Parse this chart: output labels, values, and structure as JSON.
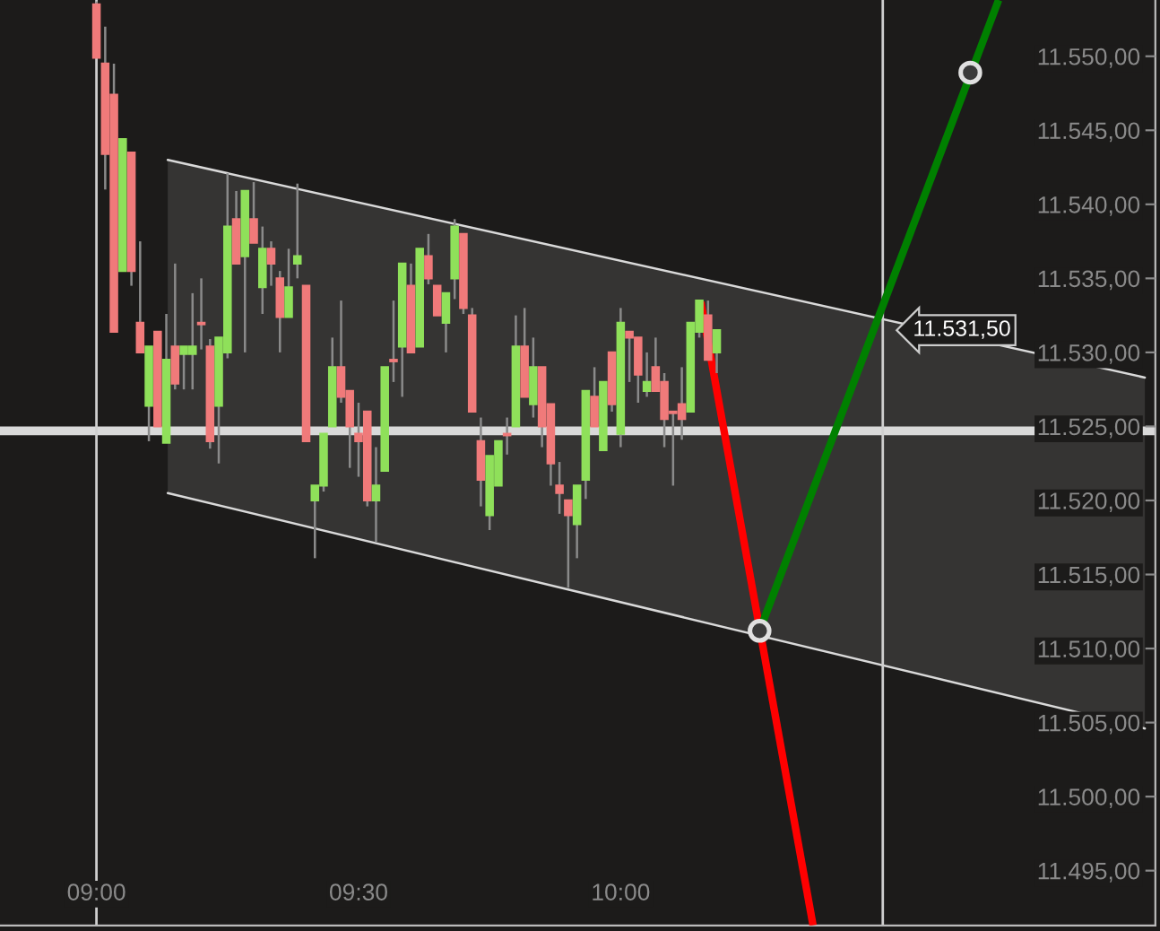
{
  "chart_data": {
    "type": "candlestick",
    "x": [
      9.0,
      9.0167,
      9.0333,
      9.05,
      9.0667,
      9.0833,
      9.1,
      9.1167,
      9.1333,
      9.15,
      9.1667,
      9.1833,
      9.2,
      9.2167,
      9.2333,
      9.25,
      9.2667,
      9.2833,
      9.3,
      9.3167,
      9.3333,
      9.35,
      9.3667,
      9.3833,
      9.4,
      9.4167,
      9.4333,
      9.45,
      9.4667,
      9.4833,
      9.5,
      9.5167,
      9.5333,
      9.55,
      9.5667,
      9.5833,
      9.6,
      9.6167,
      9.6333,
      9.65,
      9.6667,
      9.6833,
      9.7,
      9.7167,
      9.7333,
      9.75,
      9.7667,
      9.7833,
      9.8,
      9.8167,
      9.8333,
      9.85,
      9.8667,
      9.8833,
      9.9,
      9.9167,
      9.9333,
      9.95,
      9.9667,
      9.9833,
      10.0,
      10.0167,
      10.0333,
      10.05,
      10.0667,
      10.0833,
      10.1,
      10.1167,
      10.1333,
      10.15,
      10.1667,
      10.1833
    ],
    "ohlc": [
      [
        11553.5,
        11553.7,
        11549.9,
        11549.9
      ],
      [
        11549.5,
        11552.0,
        11541.0,
        11543.4
      ],
      [
        11547.4,
        11549.5,
        11531.4,
        11531.4
      ],
      [
        11535.5,
        11544.4,
        11535.5,
        11544.4
      ],
      [
        11543.5,
        11543.5,
        11534.5,
        11535.5
      ],
      [
        11532.0,
        11537.5,
        11530.0,
        11530.0
      ],
      [
        11526.4,
        11530.4,
        11524.0,
        11530.4
      ],
      [
        11531.4,
        11531.4,
        11525.0,
        11525.0
      ],
      [
        11523.9,
        11532.6,
        11523.9,
        11529.5
      ],
      [
        11530.4,
        11536.0,
        11527.5,
        11527.9
      ],
      [
        11529.9,
        11530.4,
        11527.5,
        11530.4
      ],
      [
        11529.9,
        11534.0,
        11527.5,
        11530.4
      ],
      [
        11532.0,
        11535.0,
        11530.2,
        11531.9
      ],
      [
        11530.4,
        11530.9,
        11523.5,
        11524.0
      ],
      [
        11526.4,
        11531.0,
        11522.5,
        11531.0
      ],
      [
        11530.0,
        11542.1,
        11529.6,
        11538.5
      ],
      [
        11539.0,
        11540.9,
        11536.0,
        11536.0
      ],
      [
        11536.5,
        11540.9,
        11530.0,
        11540.9
      ],
      [
        11539.0,
        11541.5,
        11537.4,
        11537.4
      ],
      [
        11534.4,
        11538.5,
        11532.6,
        11537.0
      ],
      [
        11537.0,
        11537.5,
        11534.5,
        11536.0
      ],
      [
        11535.0,
        11535.5,
        11530.0,
        11532.4
      ],
      [
        11532.4,
        11537.0,
        11532.4,
        11534.4
      ],
      [
        11536.0,
        11541.4,
        11535.0,
        11536.5
      ],
      [
        11534.5,
        11534.5,
        11524.0,
        11524.0
      ],
      [
        11520.0,
        11521.0,
        11516.1,
        11521.0
      ],
      [
        11521.0,
        11524.5,
        11520.6,
        11524.5
      ],
      [
        11525.0,
        11531.0,
        11525.0,
        11529.0
      ],
      [
        11529.0,
        11533.5,
        11526.6,
        11527.0
      ],
      [
        11527.4,
        11527.4,
        11522.2,
        11525.0
      ],
      [
        11524.5,
        11526.6,
        11521.6,
        11524.0
      ],
      [
        11526.0,
        11526.0,
        11519.6,
        11520.0
      ],
      [
        11520.0,
        11523.6,
        11517.2,
        11521.0
      ],
      [
        11522.0,
        11529.0,
        11522.0,
        11529.0
      ],
      [
        11529.5,
        11533.5,
        11528.0,
        11529.4
      ],
      [
        11530.4,
        11536.0,
        11527.0,
        11536.0
      ],
      [
        11534.5,
        11536.0,
        11530.0,
        11530.0
      ],
      [
        11530.4,
        11537.0,
        11530.4,
        11537.0
      ],
      [
        11536.5,
        11538.0,
        11534.6,
        11535.0
      ],
      [
        11534.5,
        11534.5,
        11532.5,
        11532.5
      ],
      [
        11532.0,
        11534.0,
        11530.0,
        11534.0
      ],
      [
        11535.0,
        11539.0,
        11533.6,
        11538.5
      ],
      [
        11538.0,
        11538.0,
        11532.6,
        11533.0
      ],
      [
        11532.5,
        11533.0,
        11526.0,
        11526.0
      ],
      [
        11524.0,
        11525.6,
        11519.6,
        11521.4
      ],
      [
        11519.0,
        11523.0,
        11518.0,
        11523.0
      ],
      [
        11521.0,
        11524.0,
        11521.0,
        11524.0
      ],
      [
        11524.5,
        11525.6,
        11523.1,
        11524.4
      ],
      [
        11525.0,
        11532.5,
        11525.0,
        11530.4
      ],
      [
        11530.4,
        11533.0,
        11527.0,
        11527.0
      ],
      [
        11526.5,
        11531.0,
        11525.6,
        11529.0
      ],
      [
        11529.0,
        11529.0,
        11523.6,
        11525.0
      ],
      [
        11526.5,
        11526.5,
        11521.0,
        11522.5
      ],
      [
        11521.0,
        11522.6,
        11519.1,
        11520.5
      ],
      [
        11520.0,
        11520.0,
        11514.1,
        11519.0
      ],
      [
        11518.4,
        11521.0,
        11516.1,
        11521.0
      ],
      [
        11521.4,
        11527.4,
        11520.1,
        11527.4
      ],
      [
        11527.0,
        11529.0,
        11525.0,
        11525.0
      ],
      [
        11523.4,
        11528.0,
        11523.4,
        11528.0
      ],
      [
        11530.0,
        11530.0,
        11526.0,
        11526.5
      ],
      [
        11524.5,
        11533.0,
        11523.6,
        11532.0
      ],
      [
        11531.4,
        11531.4,
        11528.0,
        11531.0
      ],
      [
        11531.0,
        11531.0,
        11526.6,
        11528.5
      ],
      [
        11527.4,
        11530.0,
        11527.0,
        11528.0
      ],
      [
        11529.0,
        11531.0,
        11527.4,
        11527.4
      ],
      [
        11528.0,
        11528.6,
        11523.6,
        11525.5
      ],
      [
        11526.0,
        11526.0,
        11521.0,
        11525.9
      ],
      [
        11526.5,
        11529.0,
        11524.1,
        11525.5
      ],
      [
        11526.0,
        11532.0,
        11526.0,
        11532.0
      ],
      [
        11531.4,
        11533.5,
        11531.0,
        11533.5
      ],
      [
        11532.5,
        11533.5,
        11529.5,
        11529.5
      ],
      [
        11530.0,
        11531.5,
        11528.6,
        11531.5
      ]
    ],
    "series": [
      {
        "type": "line",
        "color": "#d9d9d9",
        "x": [
          9.136,
          11.0
        ],
        "values": [
          11543.0,
          11528.3
        ],
        "lower": [
          11520.5,
          11504.6
        ],
        "upper": [
          11543.0,
          11528.3
        ]
      },
      {
        "type": "line",
        "color": "#d9d9d9",
        "x": [
          9.136,
          11.0
        ],
        "values": [
          11520.5,
          11504.6
        ]
      },
      {
        "type": "line",
        "color": "#ff0000",
        "x": [
          10.153,
          10.367
        ],
        "values": [
          11533.4,
          11491.3
        ]
      },
      {
        "type": "line",
        "color": "#008000",
        "x": [
          10.265,
          10.721
        ],
        "values": [
          11511.2,
          11553.8
        ]
      },
      {
        "type": "scatter",
        "color": "#e0e0e0",
        "marker": "circle",
        "x": [
          10.265,
          10.667
        ],
        "values": [
          11511.2,
          11548.9
        ]
      }
    ],
    "ref_lines": [
      {
        "axis": "y",
        "value": 11524.7,
        "color": "#d9d9d9"
      },
      {
        "axis": "x",
        "value": 9.0,
        "color": "#cfcfcf"
      },
      {
        "axis": "x",
        "value": 10.5,
        "color": "#cfcfcf"
      }
    ],
    "annotations": [
      "11.531,50"
    ],
    "xlim": [
      8.816,
      11.02
    ],
    "ylim": [
      11491.3,
      11553.8
    ],
    "xticks": [
      {
        "value": 9.0,
        "label": "09:00"
      },
      {
        "value": 9.5,
        "label": "09:30"
      },
      {
        "value": 10.0,
        "label": "10:00"
      }
    ],
    "yticks": [
      {
        "value": 11495,
        "label": "11.495,00"
      },
      {
        "value": 11500,
        "label": "11.500,00"
      },
      {
        "value": 11505,
        "label": "11.505,00"
      },
      {
        "value": 11510,
        "label": "11.510,00"
      },
      {
        "value": 11515,
        "label": "11.515,00"
      },
      {
        "value": 11520,
        "label": "11.520,00"
      },
      {
        "value": 11525,
        "label": "11.525,00"
      },
      {
        "value": 11530,
        "label": "11.530,00"
      },
      {
        "value": 11535,
        "label": "11.535,00"
      },
      {
        "value": 11540,
        "label": "11.540,00"
      },
      {
        "value": 11545,
        "label": "11.545,00"
      },
      {
        "value": 11550,
        "label": "11.550,00"
      }
    ],
    "grid": false
  }
}
